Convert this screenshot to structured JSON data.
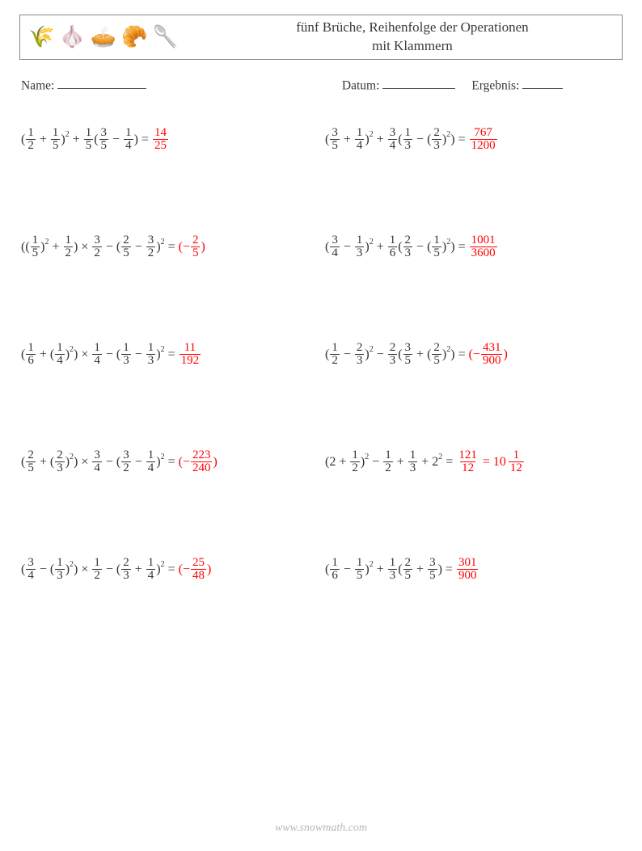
{
  "header": {
    "title_line1": "fünf Brüche, Reihenfolge der Operationen",
    "title_line2": "mit Klammern",
    "icons": [
      "🌾",
      "🧄",
      "🥧",
      "🥐",
      "🥄"
    ]
  },
  "meta": {
    "name_label": "Name:",
    "date_label": "Datum:",
    "result_label": "Ergebnis:",
    "blank_name_width": 110,
    "blank_date_width": 90,
    "blank_result_width": 50
  },
  "layout": {
    "answer_color": "#ff0000",
    "text_color": "#333333"
  },
  "problems": [
    {
      "expr": [
        {
          "t": "txt",
          "v": "("
        },
        {
          "t": "frac",
          "n": "1",
          "d": "2"
        },
        {
          "t": "op",
          "v": "+"
        },
        {
          "t": "frac",
          "n": "1",
          "d": "5"
        },
        {
          "t": "txt",
          "v": ")"
        },
        {
          "t": "sup",
          "v": "2"
        },
        {
          "t": "op",
          "v": "+"
        },
        {
          "t": "frac",
          "n": "1",
          "d": "5"
        },
        {
          "t": "txt",
          "v": "("
        },
        {
          "t": "frac",
          "n": "3",
          "d": "5"
        },
        {
          "t": "op",
          "v": "−"
        },
        {
          "t": "frac",
          "n": "1",
          "d": "4"
        },
        {
          "t": "txt",
          "v": ")"
        },
        {
          "t": "op",
          "v": "="
        }
      ],
      "answer": [
        {
          "t": "frac",
          "n": "14",
          "d": "25"
        }
      ]
    },
    {
      "expr": [
        {
          "t": "txt",
          "v": "("
        },
        {
          "t": "frac",
          "n": "3",
          "d": "5"
        },
        {
          "t": "op",
          "v": "+"
        },
        {
          "t": "frac",
          "n": "1",
          "d": "4"
        },
        {
          "t": "txt",
          "v": ")"
        },
        {
          "t": "sup",
          "v": "2"
        },
        {
          "t": "op",
          "v": "+"
        },
        {
          "t": "frac",
          "n": "3",
          "d": "4"
        },
        {
          "t": "txt",
          "v": "("
        },
        {
          "t": "frac",
          "n": "1",
          "d": "3"
        },
        {
          "t": "op",
          "v": "−"
        },
        {
          "t": "txt",
          "v": "("
        },
        {
          "t": "frac",
          "n": "2",
          "d": "3"
        },
        {
          "t": "txt",
          "v": ")"
        },
        {
          "t": "sup",
          "v": "2"
        },
        {
          "t": "txt",
          "v": ")"
        },
        {
          "t": "op",
          "v": "="
        }
      ],
      "answer": [
        {
          "t": "frac",
          "n": "767",
          "d": "1200"
        }
      ]
    },
    {
      "expr": [
        {
          "t": "txt",
          "v": "(("
        },
        {
          "t": "frac",
          "n": "1",
          "d": "5"
        },
        {
          "t": "txt",
          "v": ")"
        },
        {
          "t": "sup",
          "v": "2"
        },
        {
          "t": "op",
          "v": "+"
        },
        {
          "t": "frac",
          "n": "1",
          "d": "2"
        },
        {
          "t": "txt",
          "v": ")"
        },
        {
          "t": "op",
          "v": "×"
        },
        {
          "t": "frac",
          "n": "3",
          "d": "2"
        },
        {
          "t": "op",
          "v": "−"
        },
        {
          "t": "txt",
          "v": "("
        },
        {
          "t": "frac",
          "n": "2",
          "d": "5"
        },
        {
          "t": "op",
          "v": "−"
        },
        {
          "t": "frac",
          "n": "3",
          "d": "2"
        },
        {
          "t": "txt",
          "v": ")"
        },
        {
          "t": "sup",
          "v": "2"
        },
        {
          "t": "op",
          "v": "="
        }
      ],
      "answer": [
        {
          "t": "txt",
          "v": "(−"
        },
        {
          "t": "frac",
          "n": "2",
          "d": "5"
        },
        {
          "t": "txt",
          "v": ")"
        }
      ]
    },
    {
      "expr": [
        {
          "t": "txt",
          "v": "("
        },
        {
          "t": "frac",
          "n": "3",
          "d": "4"
        },
        {
          "t": "op",
          "v": "−"
        },
        {
          "t": "frac",
          "n": "1",
          "d": "3"
        },
        {
          "t": "txt",
          "v": ")"
        },
        {
          "t": "sup",
          "v": "2"
        },
        {
          "t": "op",
          "v": "+"
        },
        {
          "t": "frac",
          "n": "1",
          "d": "6"
        },
        {
          "t": "txt",
          "v": "("
        },
        {
          "t": "frac",
          "n": "2",
          "d": "3"
        },
        {
          "t": "op",
          "v": "−"
        },
        {
          "t": "txt",
          "v": "("
        },
        {
          "t": "frac",
          "n": "1",
          "d": "5"
        },
        {
          "t": "txt",
          "v": ")"
        },
        {
          "t": "sup",
          "v": "2"
        },
        {
          "t": "txt",
          "v": ")"
        },
        {
          "t": "op",
          "v": "="
        }
      ],
      "answer": [
        {
          "t": "frac",
          "n": "1001",
          "d": "3600"
        }
      ]
    },
    {
      "expr": [
        {
          "t": "txt",
          "v": "("
        },
        {
          "t": "frac",
          "n": "1",
          "d": "6"
        },
        {
          "t": "op",
          "v": "+"
        },
        {
          "t": "txt",
          "v": "("
        },
        {
          "t": "frac",
          "n": "1",
          "d": "4"
        },
        {
          "t": "txt",
          "v": ")"
        },
        {
          "t": "sup",
          "v": "2"
        },
        {
          "t": "txt",
          "v": ")"
        },
        {
          "t": "op",
          "v": "×"
        },
        {
          "t": "frac",
          "n": "1",
          "d": "4"
        },
        {
          "t": "op",
          "v": "−"
        },
        {
          "t": "txt",
          "v": "("
        },
        {
          "t": "frac",
          "n": "1",
          "d": "3"
        },
        {
          "t": "op",
          "v": "−"
        },
        {
          "t": "frac",
          "n": "1",
          "d": "3"
        },
        {
          "t": "txt",
          "v": ")"
        },
        {
          "t": "sup",
          "v": "2"
        },
        {
          "t": "op",
          "v": "="
        }
      ],
      "answer": [
        {
          "t": "frac",
          "n": "11",
          "d": "192"
        }
      ]
    },
    {
      "expr": [
        {
          "t": "txt",
          "v": "("
        },
        {
          "t": "frac",
          "n": "1",
          "d": "2"
        },
        {
          "t": "op",
          "v": "−"
        },
        {
          "t": "frac",
          "n": "2",
          "d": "3"
        },
        {
          "t": "txt",
          "v": ")"
        },
        {
          "t": "sup",
          "v": "2"
        },
        {
          "t": "op",
          "v": "−"
        },
        {
          "t": "frac",
          "n": "2",
          "d": "3"
        },
        {
          "t": "txt",
          "v": "("
        },
        {
          "t": "frac",
          "n": "3",
          "d": "5"
        },
        {
          "t": "op",
          "v": "+"
        },
        {
          "t": "txt",
          "v": "("
        },
        {
          "t": "frac",
          "n": "2",
          "d": "5"
        },
        {
          "t": "txt",
          "v": ")"
        },
        {
          "t": "sup",
          "v": "2"
        },
        {
          "t": "txt",
          "v": ")"
        },
        {
          "t": "op",
          "v": "="
        }
      ],
      "answer": [
        {
          "t": "txt",
          "v": "(−"
        },
        {
          "t": "frac",
          "n": "431",
          "d": "900"
        },
        {
          "t": "txt",
          "v": ")"
        }
      ]
    },
    {
      "expr": [
        {
          "t": "txt",
          "v": "("
        },
        {
          "t": "frac",
          "n": "2",
          "d": "5"
        },
        {
          "t": "op",
          "v": "+"
        },
        {
          "t": "txt",
          "v": "("
        },
        {
          "t": "frac",
          "n": "2",
          "d": "3"
        },
        {
          "t": "txt",
          "v": ")"
        },
        {
          "t": "sup",
          "v": "2"
        },
        {
          "t": "txt",
          "v": ")"
        },
        {
          "t": "op",
          "v": "×"
        },
        {
          "t": "frac",
          "n": "3",
          "d": "4"
        },
        {
          "t": "op",
          "v": "−"
        },
        {
          "t": "txt",
          "v": "("
        },
        {
          "t": "frac",
          "n": "3",
          "d": "2"
        },
        {
          "t": "op",
          "v": "−"
        },
        {
          "t": "frac",
          "n": "1",
          "d": "4"
        },
        {
          "t": "txt",
          "v": ")"
        },
        {
          "t": "sup",
          "v": "2"
        },
        {
          "t": "op",
          "v": "="
        }
      ],
      "answer": [
        {
          "t": "txt",
          "v": "(−"
        },
        {
          "t": "frac",
          "n": "223",
          "d": "240"
        },
        {
          "t": "txt",
          "v": ")"
        }
      ]
    },
    {
      "expr": [
        {
          "t": "txt",
          "v": "(2"
        },
        {
          "t": "op",
          "v": "+"
        },
        {
          "t": "frac",
          "n": "1",
          "d": "2"
        },
        {
          "t": "txt",
          "v": ")"
        },
        {
          "t": "sup",
          "v": "2"
        },
        {
          "t": "op",
          "v": "−"
        },
        {
          "t": "frac",
          "n": "1",
          "d": "2"
        },
        {
          "t": "op",
          "v": "+"
        },
        {
          "t": "frac",
          "n": "1",
          "d": "3"
        },
        {
          "t": "op",
          "v": "+"
        },
        {
          "t": "txt",
          "v": "2"
        },
        {
          "t": "sup",
          "v": "2"
        },
        {
          "t": "op",
          "v": "="
        }
      ],
      "answer": [
        {
          "t": "frac",
          "n": "121",
          "d": "12"
        },
        {
          "t": "op",
          "v": "="
        },
        {
          "t": "mixed",
          "w": "10",
          "n": "1",
          "d": "12"
        }
      ]
    },
    {
      "expr": [
        {
          "t": "txt",
          "v": "("
        },
        {
          "t": "frac",
          "n": "3",
          "d": "4"
        },
        {
          "t": "op",
          "v": "−"
        },
        {
          "t": "txt",
          "v": "("
        },
        {
          "t": "frac",
          "n": "1",
          "d": "3"
        },
        {
          "t": "txt",
          "v": ")"
        },
        {
          "t": "sup",
          "v": "2"
        },
        {
          "t": "txt",
          "v": ")"
        },
        {
          "t": "op",
          "v": "×"
        },
        {
          "t": "frac",
          "n": "1",
          "d": "2"
        },
        {
          "t": "op",
          "v": "−"
        },
        {
          "t": "txt",
          "v": "("
        },
        {
          "t": "frac",
          "n": "2",
          "d": "3"
        },
        {
          "t": "op",
          "v": "+"
        },
        {
          "t": "frac",
          "n": "1",
          "d": "4"
        },
        {
          "t": "txt",
          "v": ")"
        },
        {
          "t": "sup",
          "v": "2"
        },
        {
          "t": "op",
          "v": "="
        }
      ],
      "answer": [
        {
          "t": "txt",
          "v": "(−"
        },
        {
          "t": "frac",
          "n": "25",
          "d": "48"
        },
        {
          "t": "txt",
          "v": ")"
        }
      ]
    },
    {
      "expr": [
        {
          "t": "txt",
          "v": "("
        },
        {
          "t": "frac",
          "n": "1",
          "d": "6"
        },
        {
          "t": "op",
          "v": "−"
        },
        {
          "t": "frac",
          "n": "1",
          "d": "5"
        },
        {
          "t": "txt",
          "v": ")"
        },
        {
          "t": "sup",
          "v": "2"
        },
        {
          "t": "op",
          "v": "+"
        },
        {
          "t": "frac",
          "n": "1",
          "d": "3"
        },
        {
          "t": "txt",
          "v": "("
        },
        {
          "t": "frac",
          "n": "2",
          "d": "5"
        },
        {
          "t": "op",
          "v": "+"
        },
        {
          "t": "frac",
          "n": "3",
          "d": "5"
        },
        {
          "t": "txt",
          "v": ")"
        },
        {
          "t": "op",
          "v": "="
        }
      ],
      "answer": [
        {
          "t": "frac",
          "n": "301",
          "d": "900"
        }
      ]
    }
  ],
  "footer": "www.snowmath.com"
}
